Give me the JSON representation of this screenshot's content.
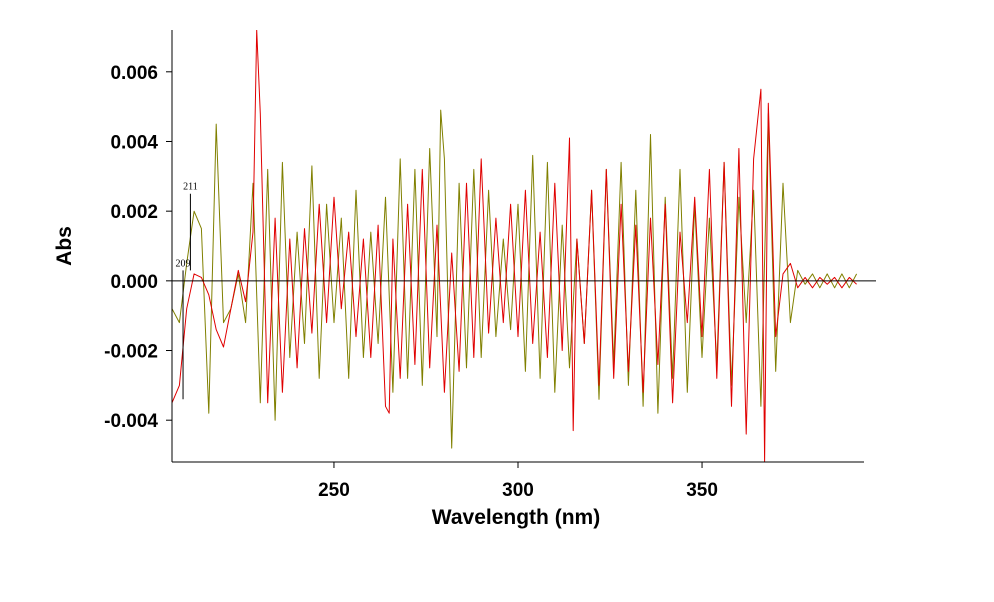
{
  "chart_data": {
    "type": "line",
    "title": "",
    "xlabel": "Wavelength (nm)",
    "ylabel": "Abs",
    "xlim": [
      206,
      394
    ],
    "ylim": [
      -0.0052,
      0.0072
    ],
    "grid": false,
    "legend": "none",
    "x_ticks": [
      250,
      300,
      350
    ],
    "x_tick_labels": [
      "250",
      "300",
      "350"
    ],
    "y_ticks": [
      0.006,
      0.004,
      0.002,
      0.0,
      -0.002,
      -0.004
    ],
    "y_tick_labels": [
      "0.006",
      "0.004",
      "0.002",
      "0.000",
      "-0.002",
      "-0.004"
    ],
    "zero_line": true,
    "annotations": [
      {
        "label": "211",
        "x": 211,
        "y_from": 0.0025,
        "y_to": 0.0003
      },
      {
        "label": "209",
        "x": 209,
        "y_from": 0.0003,
        "y_to": -0.0034
      }
    ],
    "series": [
      {
        "color": "#e00000",
        "x": [
          206,
          208,
          210,
          212,
          214,
          216,
          218,
          220,
          222,
          224,
          226,
          228,
          229,
          230,
          232,
          234,
          236,
          238,
          240,
          242,
          244,
          246,
          248,
          250,
          252,
          254,
          256,
          258,
          260,
          262,
          264,
          265,
          266,
          268,
          270,
          272,
          274,
          276,
          278,
          280,
          282,
          284,
          286,
          288,
          290,
          292,
          294,
          296,
          298,
          300,
          302,
          304,
          306,
          308,
          310,
          312,
          314,
          315,
          316,
          318,
          320,
          322,
          324,
          326,
          328,
          330,
          332,
          334,
          336,
          338,
          340,
          342,
          344,
          346,
          348,
          350,
          352,
          354,
          356,
          358,
          360,
          362,
          364,
          366,
          367,
          368,
          370,
          372,
          374,
          376,
          378,
          380,
          382,
          384,
          386,
          388,
          390,
          392
        ],
        "y": [
          -0.0035,
          -0.003,
          -0.0008,
          0.0002,
          0.0001,
          -0.0004,
          -0.0014,
          -0.0019,
          -0.0008,
          0.0003,
          -0.0006,
          0.0014,
          0.0072,
          0.0048,
          -0.0035,
          0.0018,
          -0.0032,
          0.0012,
          -0.0025,
          0.0015,
          -0.0015,
          0.0022,
          -0.0012,
          0.0024,
          -0.0008,
          0.0014,
          -0.0016,
          0.0012,
          -0.0022,
          0.0016,
          -0.0036,
          -0.0038,
          0.0012,
          -0.0028,
          0.0022,
          -0.0024,
          0.0032,
          -0.0025,
          0.0016,
          -0.0032,
          0.0008,
          -0.0026,
          0.0028,
          -0.0022,
          0.0035,
          -0.0015,
          0.0018,
          -0.0012,
          0.0022,
          -0.0016,
          0.0026,
          -0.0018,
          0.0014,
          -0.0022,
          0.0028,
          -0.002,
          0.0041,
          -0.0043,
          0.0012,
          -0.0018,
          0.0026,
          -0.003,
          0.0032,
          -0.0028,
          0.0022,
          -0.0026,
          0.0016,
          -0.0032,
          0.0018,
          -0.0024,
          0.0022,
          -0.0035,
          0.0014,
          -0.0012,
          0.0024,
          -0.0016,
          0.0032,
          -0.0028,
          0.0034,
          -0.0036,
          0.0038,
          -0.0044,
          0.0035,
          0.0055,
          -0.0052,
          0.0051,
          -0.0016,
          0.0002,
          0.0005,
          -0.0002,
          0.0001,
          -0.0002,
          0.0001,
          -0.0001,
          0.0001,
          -0.0002,
          0.0001,
          -0.0001
        ]
      },
      {
        "color": "#808000",
        "x": [
          206,
          208,
          210,
          212,
          214,
          216,
          218,
          220,
          222,
          224,
          226,
          228,
          230,
          232,
          234,
          236,
          238,
          240,
          242,
          244,
          246,
          248,
          250,
          252,
          254,
          256,
          258,
          260,
          262,
          264,
          266,
          268,
          270,
          272,
          274,
          276,
          278,
          279,
          280,
          282,
          284,
          286,
          288,
          290,
          292,
          294,
          296,
          298,
          300,
          302,
          304,
          306,
          308,
          310,
          312,
          314,
          316,
          318,
          320,
          322,
          324,
          326,
          328,
          330,
          332,
          334,
          336,
          338,
          340,
          342,
          344,
          346,
          348,
          350,
          352,
          354,
          356,
          358,
          360,
          362,
          364,
          366,
          368,
          370,
          372,
          374,
          376,
          378,
          380,
          382,
          384,
          386,
          388,
          390,
          392
        ],
        "y": [
          -0.0008,
          -0.0012,
          0.0005,
          0.002,
          0.0015,
          -0.0038,
          0.0045,
          -0.0012,
          -0.0008,
          0.0002,
          -0.0012,
          0.0028,
          -0.0035,
          0.0032,
          -0.004,
          0.0034,
          -0.0022,
          0.0014,
          -0.0018,
          0.0033,
          -0.0028,
          0.0022,
          -0.0012,
          0.0018,
          -0.0028,
          0.0026,
          -0.0022,
          0.0014,
          -0.0018,
          0.0024,
          -0.0032,
          0.0035,
          -0.0028,
          0.0032,
          -0.003,
          0.0038,
          -0.0016,
          0.0049,
          0.0035,
          -0.0048,
          0.0028,
          -0.0025,
          0.0032,
          -0.0022,
          0.0026,
          -0.0016,
          0.0012,
          -0.0014,
          0.0022,
          -0.0026,
          0.0036,
          -0.0028,
          0.0034,
          -0.0032,
          0.0016,
          -0.0025,
          0.0012,
          -0.0018,
          0.0026,
          -0.0034,
          0.0032,
          -0.0024,
          0.0034,
          -0.003,
          0.0026,
          -0.0036,
          0.0042,
          -0.0038,
          0.0024,
          -0.0028,
          0.0032,
          -0.0032,
          0.0022,
          -0.0022,
          0.0018,
          -0.0024,
          0.0034,
          -0.003,
          0.0024,
          -0.0012,
          0.0026,
          -0.0036,
          0.0048,
          -0.0026,
          0.0028,
          -0.0012,
          0.0003,
          -0.0001,
          0.0002,
          -0.0002,
          0.0002,
          -0.0002,
          0.0002,
          -0.0002,
          0.0002
        ]
      }
    ]
  }
}
